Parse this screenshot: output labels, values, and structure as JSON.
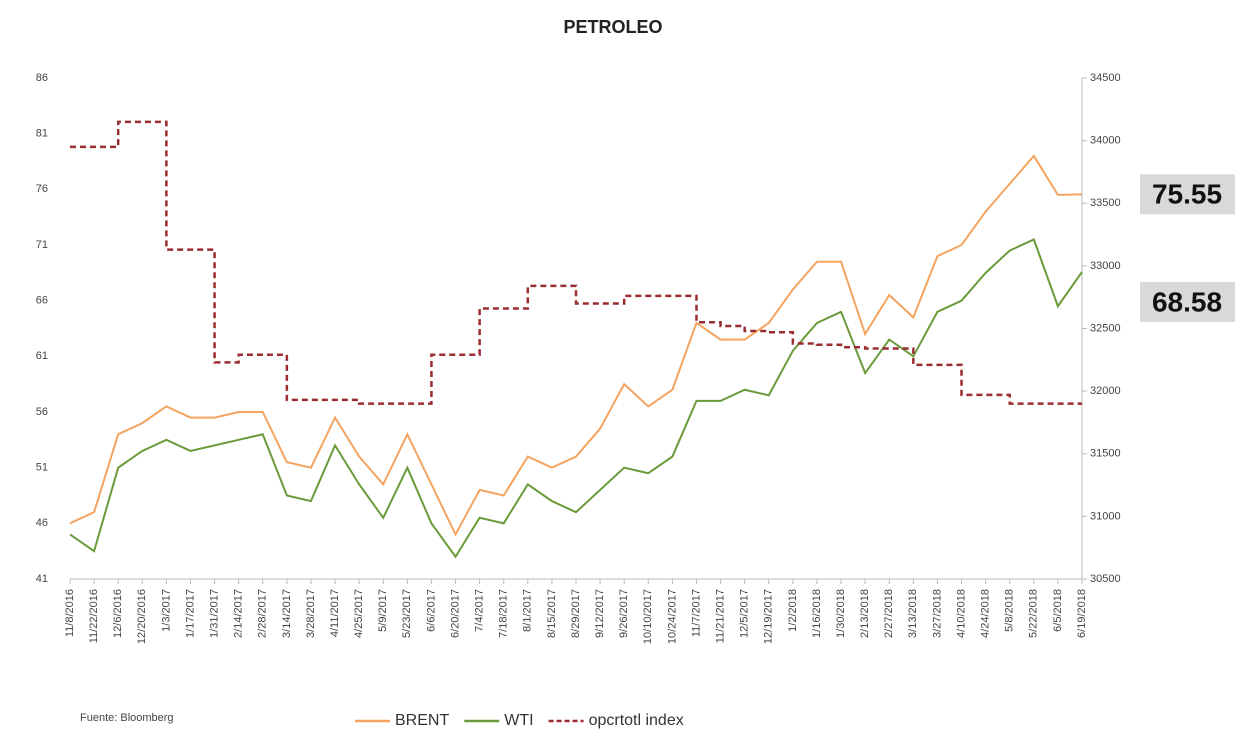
{
  "chart_data": {
    "type": "line",
    "title": "PETROLEO",
    "source": "Fuente: Bloomberg",
    "categories": [
      "11/8/2016",
      "11/22/2016",
      "12/6/2016",
      "12/20/2016",
      "1/3/2017",
      "1/17/2017",
      "1/31/2017",
      "2/14/2017",
      "2/28/2017",
      "3/14/2017",
      "3/28/2017",
      "4/11/2017",
      "4/25/2017",
      "5/9/2017",
      "5/23/2017",
      "6/6/2017",
      "6/20/2017",
      "7/4/2017",
      "7/18/2017",
      "8/1/2017",
      "8/15/2017",
      "8/29/2017",
      "9/12/2017",
      "9/26/2017",
      "10/10/2017",
      "10/24/2017",
      "11/7/2017",
      "11/21/2017",
      "12/5/2017",
      "12/19/2017",
      "1/2/2018",
      "1/16/2018",
      "1/30/2018",
      "2/13/2018",
      "2/27/2018",
      "3/13/2018",
      "3/27/2018",
      "4/10/2018",
      "4/24/2018",
      "5/8/2018",
      "5/22/2018",
      "6/5/2018",
      "6/19/2018"
    ],
    "series": [
      {
        "name": "BRENT",
        "color": "#f4a460",
        "values": [
          46,
          47,
          54,
          55,
          56.5,
          55.5,
          55.5,
          56,
          56,
          51.5,
          51,
          55.5,
          52,
          49.5,
          54,
          49.5,
          45,
          49,
          48.5,
          52,
          51,
          52,
          54.5,
          58.5,
          56.5,
          58,
          64,
          62.5,
          62.5,
          64,
          67,
          69.5,
          69.5,
          63,
          66.5,
          64.5,
          70,
          71,
          74,
          76.5,
          79,
          75.5,
          75.55
        ],
        "last_label": true
      },
      {
        "name": "WTI",
        "color": "#6b9a3a",
        "values": [
          45,
          43.5,
          51,
          52.5,
          53.5,
          52.5,
          53,
          53.5,
          54,
          48.5,
          48,
          53,
          49.5,
          46.5,
          51,
          46,
          43,
          46.5,
          46,
          49.5,
          48,
          47,
          49,
          51,
          50.5,
          52,
          57,
          57,
          58,
          57.5,
          61.5,
          64,
          65,
          59.5,
          62.5,
          61,
          65,
          66,
          68.5,
          70.5,
          71.5,
          65.5,
          68.58
        ],
        "last_label": true
      },
      {
        "name": "opcrtotl index",
        "color": "#9b2d30",
        "axis": "y2",
        "dashed": true,
        "step": true,
        "values": [
          33950,
          33950,
          34150,
          34150,
          33130,
          33130,
          32230,
          32290,
          32290,
          31930,
          31930,
          31930,
          31900,
          31900,
          31900,
          32290,
          32290,
          32660,
          32660,
          32840,
          32840,
          32700,
          32700,
          32760,
          32760,
          32760,
          32550,
          32520,
          32480,
          32470,
          32380,
          32370,
          32350,
          32340,
          32340,
          32210,
          32210,
          31970,
          31970,
          31900,
          31900,
          31900,
          31900
        ]
      }
    ],
    "ylim": [
      41,
      86
    ],
    "yticks": [
      41,
      46,
      51,
      56,
      61,
      66,
      71,
      76,
      81,
      86
    ],
    "y2lim": [
      30500,
      34500
    ],
    "y2ticks": [
      30500,
      31000,
      31500,
      32000,
      32500,
      33000,
      33500,
      34000,
      34500
    ],
    "grid": false
  }
}
